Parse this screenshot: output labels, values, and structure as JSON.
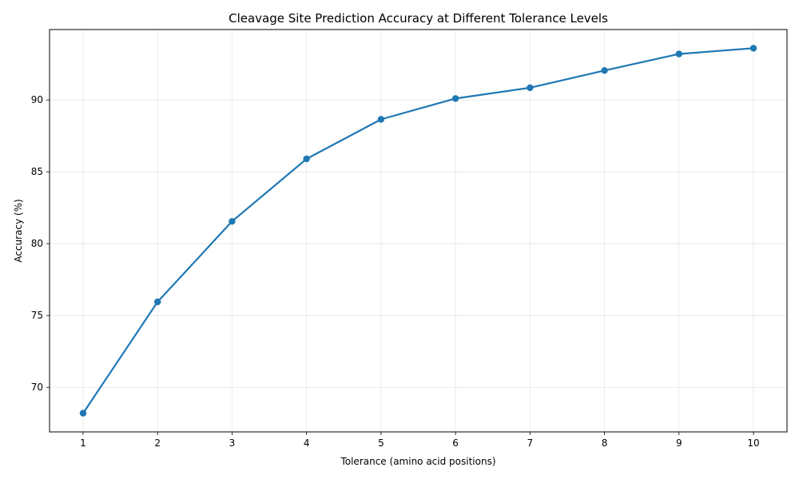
{
  "chart_data": {
    "type": "line",
    "title": "Cleavage Site Prediction Accuracy at Different Tolerance Levels",
    "xlabel": "Tolerance (amino acid positions)",
    "ylabel": "Accuracy (%)",
    "x": [
      1,
      2,
      3,
      4,
      5,
      6,
      7,
      8,
      9,
      10
    ],
    "series": [
      {
        "values": [
          68.2,
          75.95,
          81.55,
          85.9,
          88.65,
          90.1,
          90.85,
          92.05,
          93.2,
          93.6
        ]
      }
    ],
    "xlim": [
      0.55,
      10.45
    ],
    "ylim": [
      66.9,
      94.9
    ],
    "xticks": [
      1,
      2,
      3,
      4,
      5,
      6,
      7,
      8,
      9,
      10
    ],
    "yticks": [
      70,
      75,
      80,
      85,
      90
    ],
    "grid": true,
    "color": "#1f77b4",
    "marker": "circle"
  }
}
